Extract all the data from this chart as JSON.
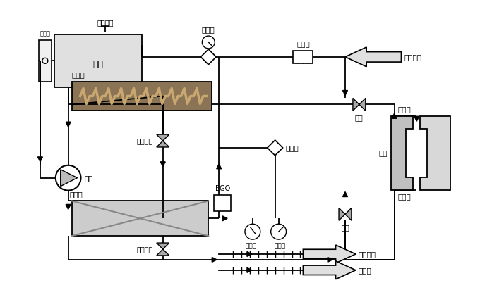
{
  "bg_color": "#ffffff",
  "cooler_fill": "#8B7355",
  "coil_color": "#c8a870",
  "heater_fill": "#cccccc",
  "heater_line": "#999999",
  "mold_fill_l": "#c0c0c0",
  "mold_fill_r": "#d8d8d8",
  "valve_fill": "#aaaaaa",
  "arrow_fill": "#e0e0e0",
  "tank_fill": "#e0e0e0",
  "labels": {
    "liquid_switch": "液位閉關",
    "tank": "油箱",
    "level_gauge": "液位鏡",
    "solenoid": "電磁閥",
    "cooler": "冷卻器",
    "filter": "過濾器",
    "ball_valve1": "球閥",
    "ball_valve2": "球閥",
    "bypass_valve": "旁通閥",
    "drain_valve1": "排油球閥",
    "drain_valve2": "排油球閥",
    "pump": "泵浦",
    "ego": "EGO",
    "temp_sensor": "感溫計",
    "pressure": "壓力錶",
    "heater": "加熱器",
    "mold": "模具",
    "mold_return": "模具回",
    "to_mold": "至模具",
    "cooling_in": "冷卻水進",
    "cooling_out": "冷卻水出",
    "drain_port": "排油口"
  }
}
